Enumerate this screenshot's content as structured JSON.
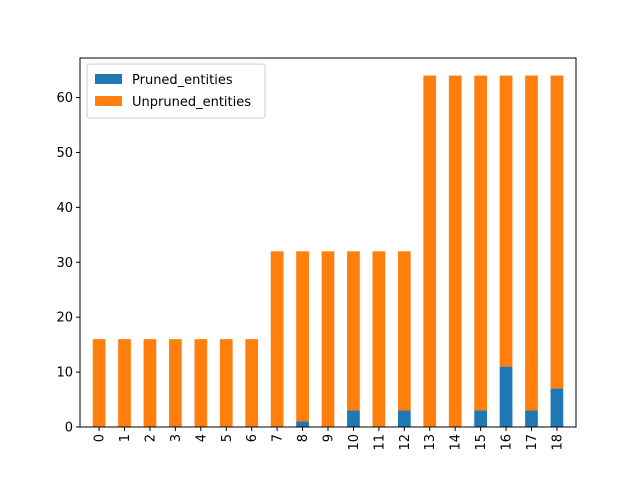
{
  "chart_data": {
    "type": "bar",
    "stacked": true,
    "categories": [
      "0",
      "1",
      "2",
      "3",
      "4",
      "5",
      "6",
      "7",
      "8",
      "9",
      "10",
      "11",
      "12",
      "13",
      "14",
      "15",
      "16",
      "17",
      "18"
    ],
    "series": [
      {
        "name": "Pruned_entities",
        "color": "#1f77b4",
        "values": [
          0,
          0,
          0,
          0,
          0,
          0,
          0,
          0,
          1,
          0,
          3,
          0,
          3,
          0,
          0,
          3,
          11,
          3,
          7
        ]
      },
      {
        "name": "Unpruned_entities",
        "color": "#ff7f0e",
        "values": [
          16,
          16,
          16,
          16,
          16,
          16,
          16,
          32,
          31,
          32,
          29,
          32,
          29,
          64,
          64,
          61,
          53,
          61,
          57
        ]
      }
    ],
    "title": "",
    "xlabel": "",
    "ylabel": "",
    "ylim": [
      0,
      67.2
    ],
    "yticks": [
      0,
      10,
      20,
      30,
      40,
      50,
      60
    ],
    "x_tick_rotation": 90,
    "grid": false,
    "legend_position": "upper-left"
  }
}
